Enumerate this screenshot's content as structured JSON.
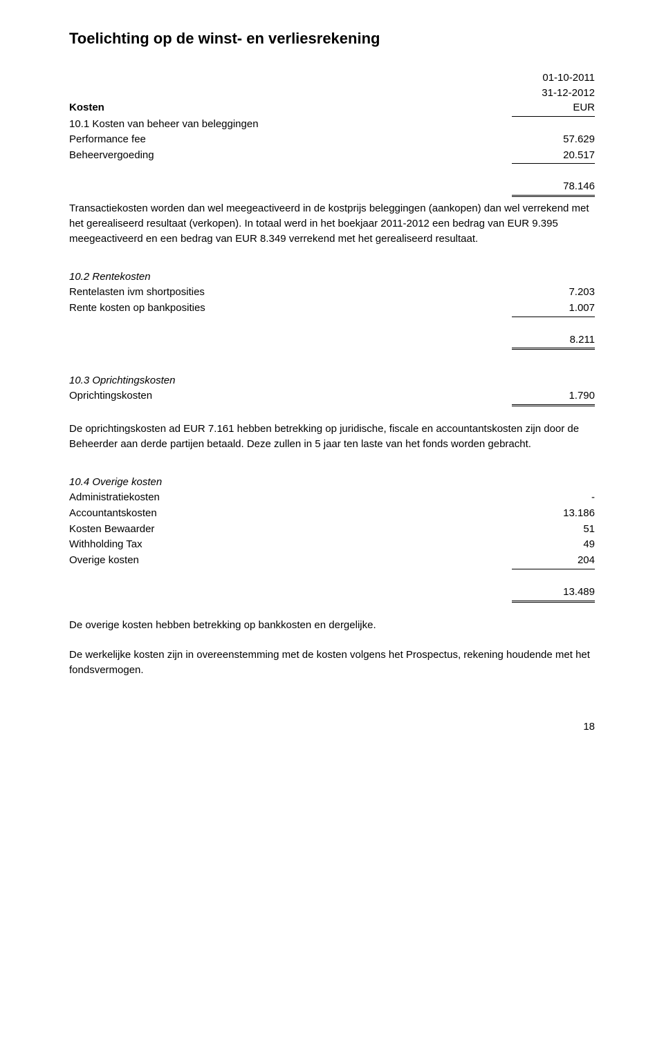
{
  "title": "Toelichting op de winst- en verliesrekening",
  "period": {
    "start": "01-10-2011",
    "end": "31-12-2012",
    "currency": "EUR"
  },
  "section_kosten": {
    "heading": "Kosten",
    "sub1": {
      "heading": "10.1 Kosten van beheer van beleggingen",
      "rows": [
        {
          "label": "Performance fee",
          "value": "57.629"
        },
        {
          "label": "Beheervergoeding",
          "value": "20.517"
        }
      ],
      "total": "78.146",
      "note": "Transactiekosten worden dan wel meegeactiveerd in de kostprijs beleggingen (aankopen) dan wel verrekend met het gerealiseerd resultaat (verkopen). In totaal werd in het boekjaar 2011-2012 een bedrag van EUR 9.395 meegeactiveerd en een bedrag van EUR 8.349 verrekend met het gerealiseerd resultaat."
    },
    "sub2": {
      "heading": "10.2  Rentekosten",
      "rows": [
        {
          "label": "Rentelasten ivm shortposities",
          "value": "7.203"
        },
        {
          "label": "Rente kosten op bankposities",
          "value": "1.007"
        }
      ],
      "total": "8.211"
    },
    "sub3": {
      "heading": "10.3 Oprichtingskosten",
      "rows": [
        {
          "label": "Oprichtingskosten",
          "value": "1.790"
        }
      ],
      "note": "De oprichtingskosten ad EUR 7.161 hebben betrekking op juridische, fiscale en accountantskosten zijn door de Beheerder aan derde partijen betaald. Deze zullen in 5 jaar ten laste van het fonds worden gebracht."
    },
    "sub4": {
      "heading": "10.4 Overige kosten",
      "rows": [
        {
          "label": "Administratiekosten",
          "value": "-"
        },
        {
          "label": "Accountantskosten",
          "value": "13.186"
        },
        {
          "label": "Kosten Bewaarder",
          "value": "51"
        },
        {
          "label": "Withholding Tax",
          "value": "49"
        },
        {
          "label": "Overige kosten",
          "value": "204"
        }
      ],
      "total": "13.489",
      "note1": "De overige kosten hebben betrekking op bankkosten en dergelijke.",
      "note2": "De werkelijke kosten zijn in overeenstemming met de kosten volgens het Prospectus, rekening houdende met het fondsvermogen."
    }
  },
  "page_number": "18"
}
